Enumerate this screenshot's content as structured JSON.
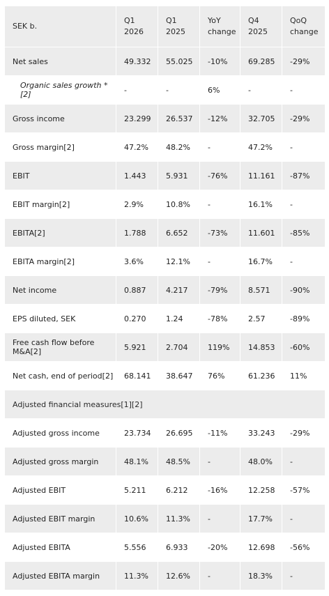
{
  "header": {
    "label": "SEK b.",
    "col1": [
      "Q1",
      "2026"
    ],
    "col2": [
      "Q1",
      "2025"
    ],
    "col3": [
      "YoY",
      "change"
    ],
    "col4": [
      "Q4",
      "2025"
    ],
    "col5": [
      "QoQ",
      "change"
    ]
  },
  "rows": [
    {
      "label": "Net sales",
      "v1": "49.332",
      "v2": "55.025",
      "v3": "-10%",
      "v4": "69.285",
      "v5": "-29%"
    },
    {
      "label": "Organic sales growth *[2]",
      "v1": "-",
      "v2": "-",
      "v3": "6%",
      "v4": "-",
      "v5": "-"
    },
    {
      "label": "Gross income",
      "v1": "23.299",
      "v2": "26.537",
      "v3": "-12%",
      "v4": "32.705",
      "v5": "-29%"
    },
    {
      "label": "Gross margin[2]",
      "v1": "47.2%",
      "v2": "48.2%",
      "v3": "-",
      "v4": "47.2%",
      "v5": "-"
    },
    {
      "label": "EBIT",
      "v1": "1.443",
      "v2": "5.931",
      "v3": "-76%",
      "v4": "11.161",
      "v5": "-87%"
    },
    {
      "label": "EBIT margin[2]",
      "v1": "2.9%",
      "v2": "10.8%",
      "v3": "-",
      "v4": "16.1%",
      "v5": "-"
    },
    {
      "label": "EBITA[2]",
      "v1": "1.788",
      "v2": "6.652",
      "v3": "-73%",
      "v4": "11.601",
      "v5": "-85%"
    },
    {
      "label": "EBITA margin[2]",
      "v1": "3.6%",
      "v2": "12.1%",
      "v3": "-",
      "v4": "16.7%",
      "v5": "-"
    },
    {
      "label": "Net income",
      "v1": "0.887",
      "v2": "4.217",
      "v3": "-79%",
      "v4": "8.571",
      "v5": "-90%"
    },
    {
      "label": "EPS diluted, SEK",
      "v1": "0.270",
      "v2": "1.24",
      "v3": "-78%",
      "v4": "2.57",
      "v5": "-89%"
    },
    {
      "label": "Free cash flow before M&A[2]",
      "v1": "5.921",
      "v2": "2.704",
      "v3": "119%",
      "v4": "14.853",
      "v5": "-60%"
    },
    {
      "label": "Net cash, end of period[2]",
      "v1": "68.141",
      "v2": "38.647",
      "v3": "76%",
      "v4": "61.236",
      "v5": "11%"
    },
    {
      "section": "Adjusted financial measures[1][2]"
    },
    {
      "label": "Adjusted gross income",
      "v1": "23.734",
      "v2": "26.695",
      "v3": "-11%",
      "v4": "33.243",
      "v5": "-29%"
    },
    {
      "label": "Adjusted gross margin",
      "v1": "48.1%",
      "v2": "48.5%",
      "v3": "-",
      "v4": "48.0%",
      "v5": "-"
    },
    {
      "label": "Adjusted EBIT",
      "v1": "5.211",
      "v2": "6.212",
      "v3": "-16%",
      "v4": "12.258",
      "v5": "-57%"
    },
    {
      "label": "Adjusted EBIT margin",
      "v1": "10.6%",
      "v2": "11.3%",
      "v3": "-",
      "v4": "17.7%",
      "v5": "-"
    },
    {
      "label": "Adjusted EBITA",
      "v1": "5.556",
      "v2": "6.933",
      "v3": "-20%",
      "v4": "12.698",
      "v5": "-56%"
    },
    {
      "label": "Adjusted EBITA margin",
      "v1": "11.3%",
      "v2": "12.6%",
      "v3": "-",
      "v4": "18.3%",
      "v5": "-"
    }
  ]
}
